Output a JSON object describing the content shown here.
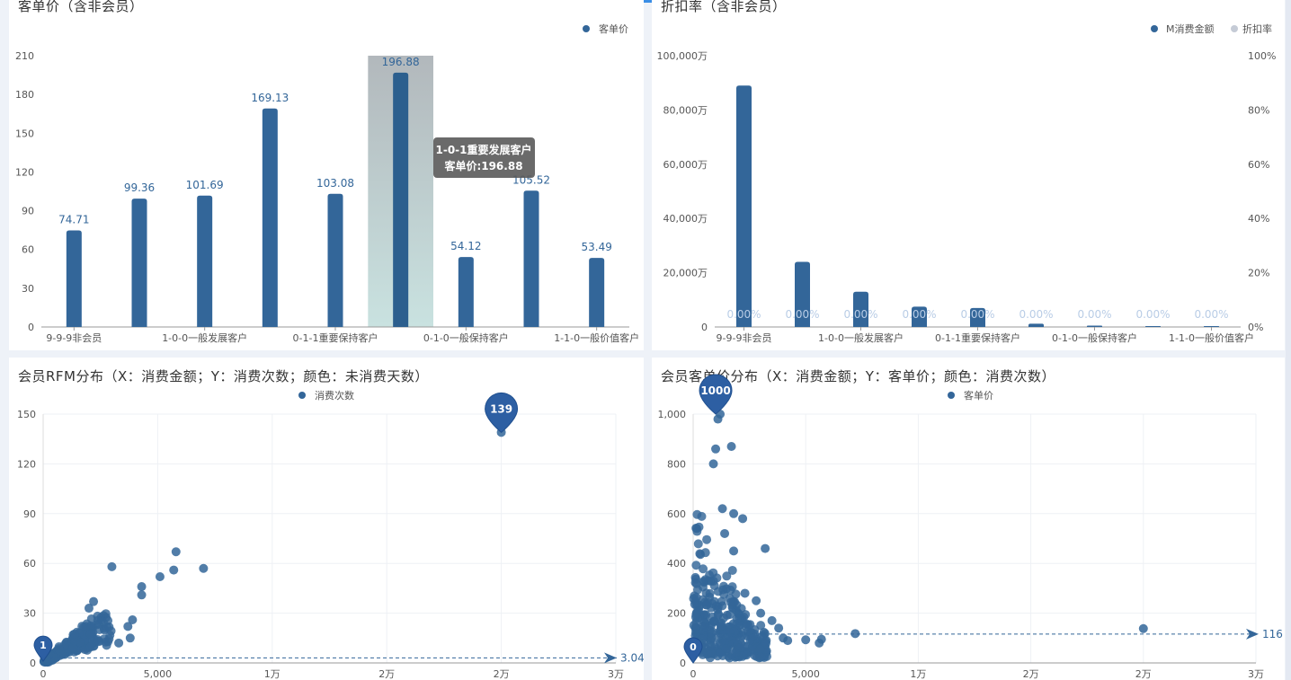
{
  "panels": {
    "tl": {
      "title": "客单价（含非会员）"
    },
    "tr": {
      "title": "折扣率（含非会员）"
    },
    "bl": {
      "title": "会员RFM分布（X：消费金额；Y：消费次数；颜色：未消费天数）"
    },
    "br": {
      "title": "会员客单价分布（X：消费金额；Y：客单价；颜色：消费次数）"
    }
  },
  "colors": {
    "primary": "#336699",
    "highlight_bg": "#b8c6c4",
    "tooltip_bg": "#5a5a5a",
    "pct_label": "#b9cde6",
    "legend_gray": "#c5cbd6"
  },
  "chart_data": [
    {
      "id": "tl",
      "type": "bar",
      "categories": [
        "9-9-9非会员",
        "",
        "1-0-0一般发展客户",
        "",
        "0-1-1重要保持客户",
        "",
        "0-1-0一般保持客户",
        "",
        "1-1-0一般价值客户"
      ],
      "series": [
        {
          "name": "客单价",
          "values": [
            74.71,
            99.36,
            101.69,
            169.13,
            103.08,
            196.88,
            54.12,
            105.52,
            53.49
          ]
        }
      ],
      "value_labels": [
        "74.71",
        "99.36",
        "101.69",
        "169.13",
        "103.08",
        "196.88",
        "54.12",
        "105.52",
        "53.49"
      ],
      "yticks": [
        "0",
        "30",
        "60",
        "90",
        "120",
        "150",
        "180",
        "210"
      ],
      "ylim": [
        0,
        210
      ],
      "legend": "top-right",
      "highlight_index": 5,
      "tooltip": {
        "title": "1-0-1重要发展客户",
        "body": "客单价:196.88"
      }
    },
    {
      "id": "tr",
      "type": "bar",
      "categories": [
        "9-9-9非会员",
        "",
        "1-0-0一般发展客户",
        "",
        "0-1-1重要保持客户",
        "",
        "0-1-0一般保持客户",
        "",
        "1-1-0一般价值客户"
      ],
      "series": [
        {
          "name": "M消费金额",
          "values": [
            89000,
            24000,
            13000,
            7500,
            7000,
            1200,
            500,
            300,
            200
          ]
        },
        {
          "name": "折扣率",
          "values": [
            0,
            0,
            0,
            0,
            0,
            0,
            0,
            0,
            0
          ]
        }
      ],
      "pct_labels": [
        "0.00%",
        "0.00%",
        "0.00%",
        "0.00%",
        "0.00%",
        "0.00%",
        "0.00%",
        "0.00%",
        "0.00%"
      ],
      "yticks_left": [
        "0",
        "20,000万",
        "40,000万",
        "60,000万",
        "80,000万",
        "100,000万"
      ],
      "yticks_right": [
        "0%",
        "20%",
        "40%",
        "60%",
        "80%",
        "100%"
      ],
      "ylim": [
        0,
        100000
      ],
      "legend": "top-right"
    },
    {
      "id": "bl",
      "type": "scatter",
      "series": [
        {
          "name": "消费次数"
        }
      ],
      "xticks": [
        "0",
        "5,000",
        "1万",
        "2万",
        "2万",
        "3万"
      ],
      "yticks": [
        "0",
        "30",
        "60",
        "90",
        "120",
        "150"
      ],
      "xlim": [
        0,
        25000
      ],
      "ylim": [
        0,
        150
      ],
      "outliers": [
        [
          20000,
          139
        ],
        [
          7000,
          57
        ],
        [
          5800,
          67
        ],
        [
          5700,
          56
        ],
        [
          5100,
          52
        ],
        [
          4300,
          46
        ],
        [
          4300,
          41
        ],
        [
          3000,
          58
        ],
        [
          3900,
          26
        ],
        [
          3700,
          22
        ],
        [
          3800,
          15
        ],
        [
          3300,
          12
        ],
        [
          2200,
          37
        ],
        [
          2000,
          33
        ]
      ],
      "marker_max": {
        "label": "139",
        "x": 20000,
        "y": 139
      },
      "marker_min": {
        "label": "1",
        "x": 0,
        "y": 1
      },
      "mark_line": {
        "label": "3.04",
        "y": 3.04
      },
      "legend": "top-center"
    },
    {
      "id": "br",
      "type": "scatter",
      "series": [
        {
          "name": "客单价"
        }
      ],
      "xticks": [
        "0",
        "5,000",
        "1万",
        "2万",
        "2万",
        "3万"
      ],
      "yticks": [
        "0",
        "200",
        "400",
        "600",
        "800",
        "1,000"
      ],
      "xlim": [
        0,
        25000
      ],
      "ylim": [
        0,
        1000
      ],
      "outliers": [
        [
          20000,
          138
        ],
        [
          7200,
          118
        ],
        [
          5700,
          95
        ],
        [
          5600,
          80
        ],
        [
          5000,
          93
        ],
        [
          4200,
          90
        ],
        [
          4000,
          100
        ],
        [
          3800,
          140
        ],
        [
          3500,
          170
        ],
        [
          3200,
          460
        ],
        [
          2200,
          580
        ],
        [
          1800,
          600
        ],
        [
          1700,
          870
        ],
        [
          1200,
          1000
        ],
        [
          1100,
          980
        ],
        [
          1000,
          860
        ],
        [
          900,
          800
        ],
        [
          1300,
          620
        ],
        [
          1400,
          520
        ],
        [
          2000,
          200
        ],
        [
          2800,
          250
        ],
        [
          3000,
          200
        ],
        [
          1800,
          450
        ],
        [
          2300,
          280
        ]
      ],
      "marker_max": {
        "label": "1000",
        "x": 1000,
        "y": 1000
      },
      "marker_min": {
        "label": "0",
        "x": 0,
        "y": 0
      },
      "mark_line": {
        "label": "116",
        "y": 116
      },
      "legend": "top-center"
    }
  ]
}
